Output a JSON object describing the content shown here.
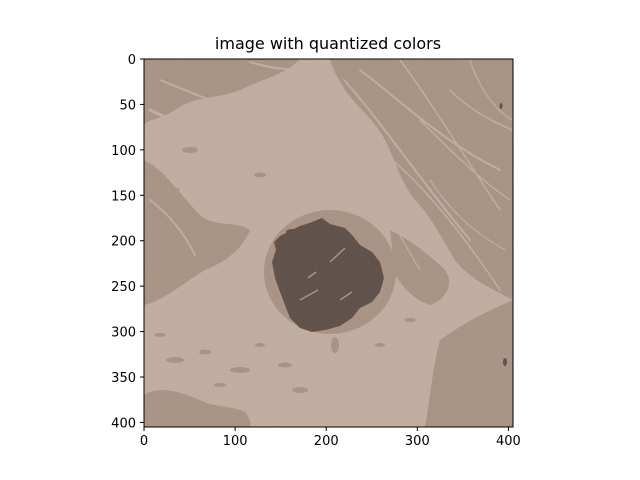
{
  "chart_data": {
    "type": "heatmap",
    "title": "image with quantized colors",
    "xlabel": "",
    "ylabel": "",
    "xlim": [
      0,
      405
    ],
    "ylim": [
      405,
      0
    ],
    "x_ticks": [
      0,
      100,
      200,
      300,
      400
    ],
    "y_ticks": [
      0,
      50,
      100,
      150,
      200,
      250,
      300,
      350,
      400
    ],
    "grid": false,
    "palette": {
      "light": "#c2ad9f",
      "medium": "#a99284",
      "dark": "#5e4e47"
    }
  }
}
